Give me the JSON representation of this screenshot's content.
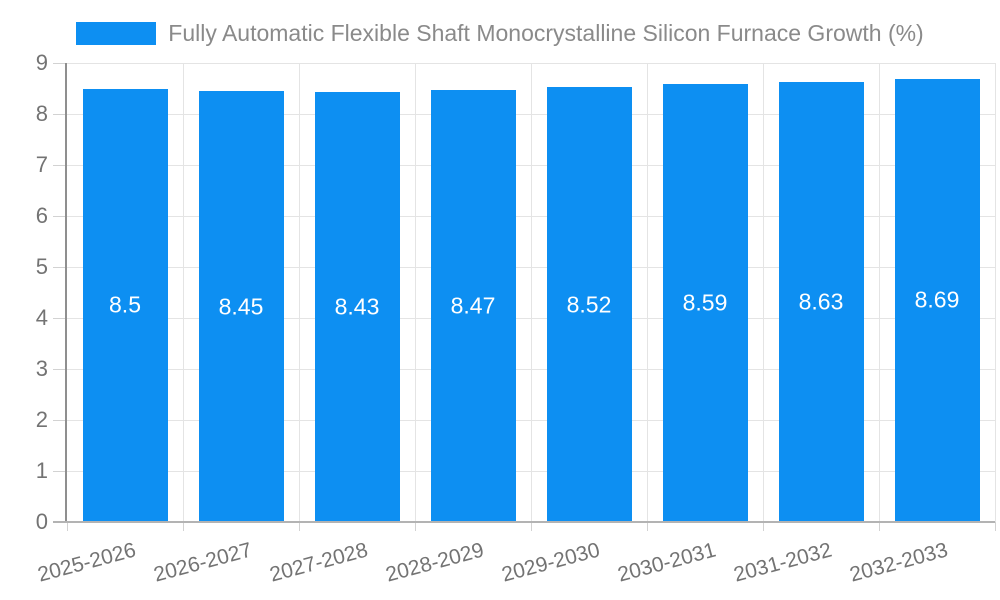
{
  "legend": {
    "label": "Fully Automatic Flexible Shaft Monocrystalline Silicon Furnace Growth (%)"
  },
  "chart_data": {
    "type": "bar",
    "title": "",
    "xlabel": "",
    "ylabel": "",
    "categories": [
      "2025-2026",
      "2026-2027",
      "2027-2028",
      "2028-2029",
      "2029-2030",
      "2030-2031",
      "2031-2032",
      "2032-2033"
    ],
    "series": [
      {
        "name": "Fully Automatic Flexible Shaft Monocrystalline Silicon Furnace Growth (%)",
        "values": [
          8.5,
          8.45,
          8.43,
          8.47,
          8.52,
          8.59,
          8.63,
          8.69
        ]
      }
    ],
    "value_labels": [
      "8.5",
      "8.45",
      "8.43",
      "8.47",
      "8.52",
      "8.59",
      "8.63",
      "8.69"
    ],
    "ylim": [
      0,
      9
    ],
    "yticks": [
      0,
      1,
      2,
      3,
      4,
      5,
      6,
      7,
      8,
      9
    ],
    "grid": true,
    "legend_position": "top",
    "colors": {
      "bar": "#0d8ff2",
      "value_label": "#ffffff",
      "axis_text": "#737373",
      "legend_text": "#8a8a8a",
      "gridline": "#e4e4e4"
    }
  }
}
